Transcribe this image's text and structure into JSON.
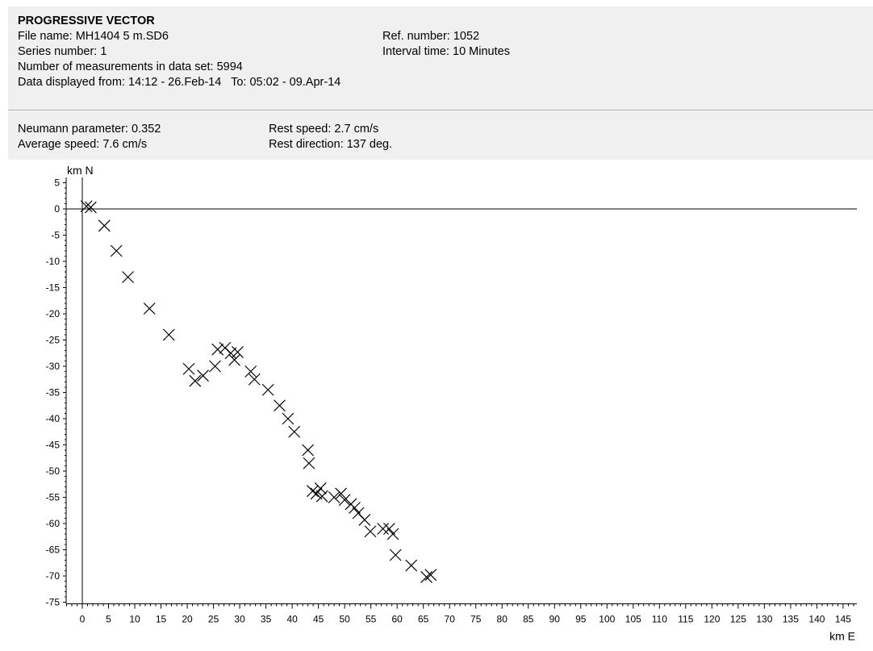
{
  "header": {
    "title": "PROGRESSIVE VECTOR",
    "file_name": "File name: MH1404 5 m.SD6",
    "ref_number": "Ref. number: 1052",
    "series_number": "Series number: 1",
    "interval_time": "Interval time: 10 Minutes",
    "measurements": "Number of measurements in data set: 5994",
    "displayed_range": "Data displayed from: 14:12 - 26.Feb-14   To: 05:02 - 09.Apr-14"
  },
  "stats": {
    "neumann": "Neumann parameter: 0.352",
    "average_speed": "Average speed: 7.6 cm/s",
    "rest_speed": "Rest speed: 2.7 cm/s",
    "rest_direction": "Rest direction: 137 deg."
  },
  "chart_data": {
    "type": "scatter",
    "xlabel": "km E",
    "ylabel": "km N",
    "xlim": [
      -5,
      148
    ],
    "ylim": [
      -75,
      5
    ],
    "x_ticks": [
      0,
      5,
      10,
      15,
      20,
      25,
      30,
      35,
      40,
      45,
      50,
      55,
      60,
      65,
      70,
      75,
      80,
      85,
      90,
      95,
      100,
      105,
      110,
      115,
      120,
      125,
      130,
      135,
      140,
      145
    ],
    "y_ticks": [
      5,
      0,
      -5,
      -10,
      -15,
      -20,
      -25,
      -30,
      -35,
      -40,
      -45,
      -50,
      -55,
      -60,
      -65,
      -70,
      -75
    ],
    "marker": "x",
    "points": [
      [
        0.8,
        0.5
      ],
      [
        1.6,
        0.3
      ],
      [
        4.2,
        -3.2
      ],
      [
        6.5,
        -8.0
      ],
      [
        8.7,
        -13.0
      ],
      [
        12.8,
        -19.0
      ],
      [
        16.5,
        -24.0
      ],
      [
        20.3,
        -30.5
      ],
      [
        21.5,
        -32.8
      ],
      [
        23.0,
        -31.8
      ],
      [
        25.3,
        -30.0
      ],
      [
        25.8,
        -26.8
      ],
      [
        27.2,
        -26.5
      ],
      [
        28.3,
        -27.5
      ],
      [
        29.0,
        -28.8
      ],
      [
        29.6,
        -27.3
      ],
      [
        32.1,
        -31.0
      ],
      [
        32.8,
        -32.5
      ],
      [
        35.4,
        -34.5
      ],
      [
        37.6,
        -37.5
      ],
      [
        39.2,
        -40.0
      ],
      [
        40.4,
        -42.5
      ],
      [
        43.0,
        -46.0
      ],
      [
        43.2,
        -48.5
      ],
      [
        43.9,
        -53.8
      ],
      [
        44.6,
        -54.3
      ],
      [
        45.4,
        -53.3
      ],
      [
        45.7,
        -54.8
      ],
      [
        48.0,
        -55.0
      ],
      [
        49.3,
        -54.3
      ],
      [
        50.0,
        -55.5
      ],
      [
        51.2,
        -56.3
      ],
      [
        51.9,
        -57.0
      ],
      [
        52.6,
        -58.0
      ],
      [
        53.8,
        -59.3
      ],
      [
        54.9,
        -61.5
      ],
      [
        57.3,
        -61.0
      ],
      [
        58.5,
        -61.0
      ],
      [
        59.2,
        -62.0
      ],
      [
        59.7,
        -66.0
      ],
      [
        62.7,
        -68.0
      ],
      [
        65.6,
        -70.2
      ],
      [
        66.4,
        -69.8
      ]
    ]
  }
}
